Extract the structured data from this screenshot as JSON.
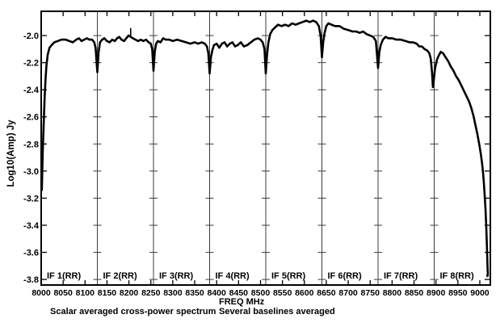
{
  "figure": {
    "ylabel": "Log10(Amp) Jy",
    "xlabel": "FREQ MHz",
    "caption_left": "Scalar averaged cross-power spectrum",
    "caption_right": "Several baselines averaged",
    "colors": {
      "ink": "#000000",
      "divider": "#3c3c3c",
      "background": "#ffffff"
    }
  },
  "chart_data": {
    "type": "line",
    "title": "Scalar averaged cross-power spectrum",
    "xlabel": "FREQ MHz",
    "ylabel": "Log10(Amp) Jy",
    "xlim": [
      8000,
      9024
    ],
    "ylim": [
      -3.841,
      -1.821
    ],
    "grid": false,
    "x_ticks": [
      8000,
      8050,
      8100,
      8150,
      8200,
      8250,
      8300,
      8350,
      8400,
      8450,
      8500,
      8550,
      8600,
      8650,
      8700,
      8750,
      8800,
      8850,
      8900,
      8950,
      9000
    ],
    "y_ticks": [
      -2.0,
      -2.2,
      -2.4,
      -2.6,
      -2.8,
      -3.0,
      -3.2,
      -3.4,
      -3.6,
      -3.8
    ],
    "if_boundaries": [
      8128,
      8256,
      8384,
      8512,
      8640,
      8768,
      8896
    ],
    "if_starts": [
      8000,
      8128,
      8256,
      8384,
      8512,
      8640,
      8768,
      8896
    ],
    "if_labels": [
      "IF 1(RR)",
      "IF 2(RR)",
      "IF 3(RR)",
      "IF 4(RR)",
      "IF 5(RR)",
      "IF 6(RR)",
      "IF 7(RR)",
      "IF 8(RR)"
    ],
    "spike": {
      "x": 8204,
      "y1": -2.005,
      "y2": -1.945
    },
    "series": [
      {
        "name": "scalar averaged cross-power amplitude (RR)",
        "points": [
          [
            8001.5,
            -3.14
          ],
          [
            8002.5,
            -2.98
          ],
          [
            8003.5,
            -2.86
          ],
          [
            8005,
            -2.72
          ],
          [
            8006.5,
            -2.58
          ],
          [
            8008,
            -2.45
          ],
          [
            8010,
            -2.32
          ],
          [
            8012,
            -2.22
          ],
          [
            8015,
            -2.14
          ],
          [
            8019,
            -2.09
          ],
          [
            8024,
            -2.07
          ],
          [
            8030,
            -2.05
          ],
          [
            8038,
            -2.04
          ],
          [
            8046,
            -2.03
          ],
          [
            8056,
            -2.03
          ],
          [
            8064,
            -2.04
          ],
          [
            8072,
            -2.05
          ],
          [
            8080,
            -2.03
          ],
          [
            8086,
            -2.02
          ],
          [
            8092,
            -2.04
          ],
          [
            8098,
            -2.03
          ],
          [
            8104,
            -2.02
          ],
          [
            8110,
            -2.03
          ],
          [
            8116,
            -2.03
          ],
          [
            8121,
            -2.05
          ],
          [
            8124,
            -2.09
          ],
          [
            8128,
            -2.27
          ],
          [
            8131,
            -2.12
          ],
          [
            8134,
            -2.05
          ],
          [
            8139,
            -2.03
          ],
          [
            8144,
            -2.02
          ],
          [
            8150,
            -2.04
          ],
          [
            8156,
            -2.05
          ],
          [
            8162,
            -2.03
          ],
          [
            8168,
            -2.04
          ],
          [
            8173,
            -2.02
          ],
          [
            8178,
            -2.01
          ],
          [
            8183,
            -2.03
          ],
          [
            8189,
            -2.04
          ],
          [
            8194,
            -2.02
          ],
          [
            8199,
            -2.0
          ],
          [
            8204,
            -2.01
          ],
          [
            8209,
            -2.02
          ],
          [
            8215,
            -2.03
          ],
          [
            8221,
            -2.04
          ],
          [
            8227,
            -2.03
          ],
          [
            8233,
            -2.04
          ],
          [
            8239,
            -2.03
          ],
          [
            8245,
            -2.05
          ],
          [
            8250,
            -2.06
          ],
          [
            8253,
            -2.1
          ],
          [
            8256,
            -2.26
          ],
          [
            8259,
            -2.12
          ],
          [
            8262,
            -2.06
          ],
          [
            8266,
            -2.04
          ],
          [
            8272,
            -2.05
          ],
          [
            8278,
            -2.02
          ],
          [
            8284,
            -2.03
          ],
          [
            8292,
            -2.03
          ],
          [
            8300,
            -2.04
          ],
          [
            8310,
            -2.03
          ],
          [
            8320,
            -2.04
          ],
          [
            8330,
            -2.05
          ],
          [
            8340,
            -2.06
          ],
          [
            8350,
            -2.05
          ],
          [
            8358,
            -2.06
          ],
          [
            8366,
            -2.05
          ],
          [
            8373,
            -2.06
          ],
          [
            8378,
            -2.08
          ],
          [
            8381,
            -2.13
          ],
          [
            8384,
            -2.28
          ],
          [
            8387,
            -2.16
          ],
          [
            8390,
            -2.11
          ],
          [
            8394,
            -2.07
          ],
          [
            8400,
            -2.06
          ],
          [
            8406,
            -2.09
          ],
          [
            8412,
            -2.06
          ],
          [
            8418,
            -2.05
          ],
          [
            8424,
            -2.08
          ],
          [
            8430,
            -2.06
          ],
          [
            8436,
            -2.05
          ],
          [
            8442,
            -2.08
          ],
          [
            8448,
            -2.07
          ],
          [
            8455,
            -2.05
          ],
          [
            8462,
            -2.08
          ],
          [
            8470,
            -2.07
          ],
          [
            8478,
            -2.05
          ],
          [
            8486,
            -2.03
          ],
          [
            8494,
            -2.02
          ],
          [
            8500,
            -2.03
          ],
          [
            8505,
            -2.05
          ],
          [
            8509,
            -2.1
          ],
          [
            8512,
            -2.28
          ],
          [
            8515,
            -2.14
          ],
          [
            8518,
            -2.05
          ],
          [
            8522,
            -1.99
          ],
          [
            8527,
            -1.96
          ],
          [
            8533,
            -1.94
          ],
          [
            8540,
            -1.92
          ],
          [
            8548,
            -1.93
          ],
          [
            8556,
            -1.92
          ],
          [
            8564,
            -1.93
          ],
          [
            8572,
            -1.91
          ],
          [
            8580,
            -1.92
          ],
          [
            8588,
            -1.91
          ],
          [
            8596,
            -1.9
          ],
          [
            8604,
            -1.89
          ],
          [
            8612,
            -1.9
          ],
          [
            8620,
            -1.89
          ],
          [
            8627,
            -1.9
          ],
          [
            8633,
            -1.93
          ],
          [
            8637,
            -2.0
          ],
          [
            8640,
            -2.16
          ],
          [
            8643,
            -2.05
          ],
          [
            8646,
            -1.98
          ],
          [
            8650,
            -1.93
          ],
          [
            8655,
            -1.91
          ],
          [
            8662,
            -1.92
          ],
          [
            8670,
            -1.93
          ],
          [
            8680,
            -1.93
          ],
          [
            8690,
            -1.95
          ],
          [
            8700,
            -1.96
          ],
          [
            8710,
            -1.97
          ],
          [
            8718,
            -1.97
          ],
          [
            8726,
            -1.98
          ],
          [
            8734,
            -1.97
          ],
          [
            8742,
            -1.99
          ],
          [
            8750,
            -2.0
          ],
          [
            8757,
            -2.01
          ],
          [
            8763,
            -2.04
          ],
          [
            8768,
            -2.24
          ],
          [
            8771,
            -2.12
          ],
          [
            8774,
            -2.07
          ],
          [
            8779,
            -2.03
          ],
          [
            8785,
            -2.01
          ],
          [
            8792,
            -2.02
          ],
          [
            8800,
            -2.02
          ],
          [
            8810,
            -2.03
          ],
          [
            8820,
            -2.03
          ],
          [
            8830,
            -2.04
          ],
          [
            8840,
            -2.05
          ],
          [
            8848,
            -2.05
          ],
          [
            8856,
            -2.06
          ],
          [
            8862,
            -2.08
          ],
          [
            8868,
            -2.08
          ],
          [
            8874,
            -2.1
          ],
          [
            8880,
            -2.11
          ],
          [
            8885,
            -2.13
          ],
          [
            8888,
            -2.17
          ],
          [
            8891,
            -2.27
          ],
          [
            8893,
            -2.38
          ],
          [
            8895,
            -2.33
          ],
          [
            8898,
            -2.24
          ],
          [
            8902,
            -2.18
          ],
          [
            8906,
            -2.15
          ],
          [
            8911,
            -2.12
          ],
          [
            8916,
            -2.13
          ],
          [
            8922,
            -2.16
          ],
          [
            8928,
            -2.19
          ],
          [
            8934,
            -2.23
          ],
          [
            8940,
            -2.26
          ],
          [
            8946,
            -2.3
          ],
          [
            8952,
            -2.33
          ],
          [
            8958,
            -2.37
          ],
          [
            8964,
            -2.41
          ],
          [
            8970,
            -2.45
          ],
          [
            8976,
            -2.49
          ],
          [
            8981,
            -2.54
          ],
          [
            8986,
            -2.6
          ],
          [
            8990,
            -2.66
          ],
          [
            8994,
            -2.72
          ],
          [
            8998,
            -2.79
          ],
          [
            9002,
            -2.87
          ],
          [
            9005,
            -2.94
          ],
          [
            9007,
            -3.0
          ],
          [
            9009,
            -3.08
          ],
          [
            9011,
            -3.17
          ],
          [
            9013,
            -3.28
          ],
          [
            9014.5,
            -3.39
          ],
          [
            9015.5,
            -3.49
          ],
          [
            9016.5,
            -3.58
          ],
          [
            9017.2,
            -3.66
          ],
          [
            9017.8,
            -3.72
          ],
          [
            9018.2,
            -3.76
          ],
          [
            9017.6,
            -3.775
          ],
          [
            9016.8,
            -3.77
          ]
        ]
      }
    ]
  }
}
